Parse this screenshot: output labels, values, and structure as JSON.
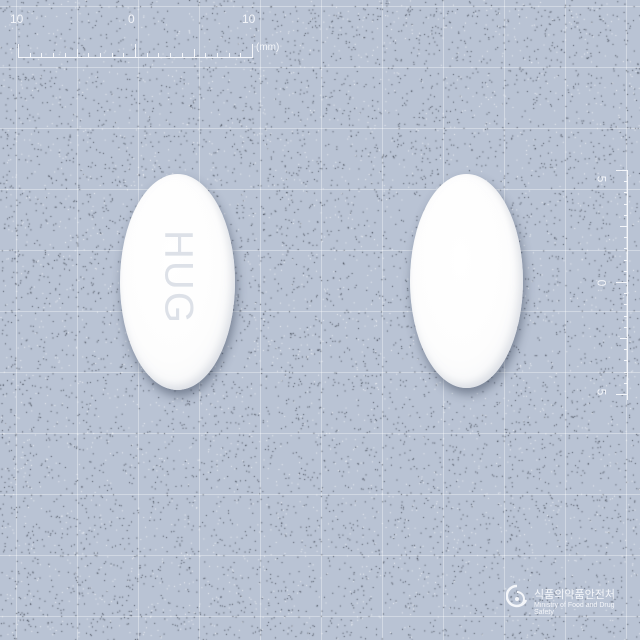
{
  "ruler_top": {
    "labels": [
      "10",
      "0",
      "10"
    ],
    "unit": "(mm)"
  },
  "ruler_right": {
    "labels": [
      "5",
      "0",
      "5"
    ]
  },
  "pills": {
    "left": {
      "imprint": "ΗUG"
    },
    "right": {
      "imprint": ""
    },
    "color": "#ffffff"
  },
  "logo": {
    "korean": "식품의약품안전처",
    "english": "Ministry of Food and Drug Safety"
  },
  "colors": {
    "background": "#b9c3d4",
    "grid": "#dfe4ec"
  }
}
